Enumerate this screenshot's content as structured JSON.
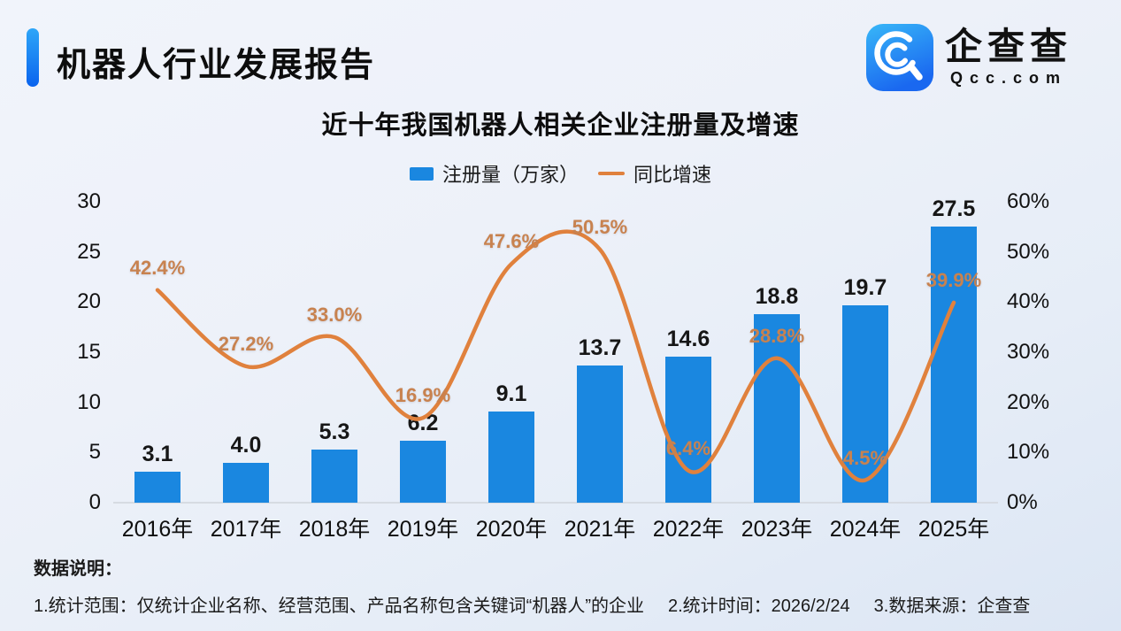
{
  "header": {
    "title": "机器人行业发展报告",
    "logo": {
      "name": "企查查",
      "domain": "Qcc.com"
    }
  },
  "chart": {
    "title": "近十年我国机器人相关企业注册量及增速"
  },
  "chart_data": {
    "type": "combo-bar-line",
    "title": "近十年我国机器人相关企业注册量及增速",
    "categories": [
      "2016年",
      "2017年",
      "2018年",
      "2019年",
      "2020年",
      "2021年",
      "2022年",
      "2023年",
      "2024年",
      "2025年"
    ],
    "series": [
      {
        "name": "注册量（万家）",
        "type": "bar",
        "axis": "left",
        "color": "#1a87e0",
        "values": [
          3.1,
          4.0,
          5.3,
          6.2,
          9.1,
          13.7,
          14.6,
          18.8,
          19.7,
          27.5
        ],
        "labels": [
          "3.1",
          "4.0",
          "5.3",
          "6.2",
          "9.1",
          "13.7",
          "14.6",
          "18.8",
          "19.7",
          "27.5"
        ]
      },
      {
        "name": "同比增速",
        "type": "line",
        "axis": "right",
        "color": "#e0813d",
        "label_color": "#c8824f",
        "values": [
          42.4,
          27.2,
          33.0,
          16.9,
          47.6,
          50.5,
          6.4,
          28.8,
          4.5,
          39.9
        ],
        "labels": [
          "42.4%",
          "27.2%",
          "33.0%",
          "16.9%",
          "47.6%",
          "50.5%",
          "6.4%",
          "28.8%",
          "4.5%",
          "39.9%"
        ]
      }
    ],
    "left_axis": {
      "ticks": [
        "30",
        "25",
        "20",
        "15",
        "10",
        "5",
        "0"
      ],
      "min": 0,
      "max": 30
    },
    "right_axis": {
      "ticks": [
        "60%",
        "50%",
        "40%",
        "30%",
        "20%",
        "10%",
        "0%"
      ],
      "min": 0,
      "max": 60
    },
    "grid": false,
    "legend_position": "top"
  },
  "footer": {
    "heading": "数据说明：",
    "notes": [
      "1.统计范围：仅统计企业名称、经营范围、产品名称包含关键词“机器人”的企业",
      "2.统计时间：2026/2/24",
      "3.数据来源：企查查"
    ]
  }
}
